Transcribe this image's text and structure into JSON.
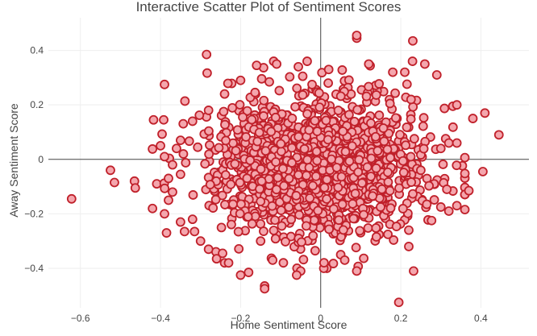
{
  "chart_data": {
    "type": "scatter",
    "title": "Interactive Scatter Plot of Sentiment Scores",
    "xlabel": "Home Sentiment Score",
    "ylabel": "Away Sentiment Score",
    "xlim": [
      -0.68,
      0.52
    ],
    "ylim": [
      -0.545,
      0.52
    ],
    "xticks": [
      -0.6,
      -0.4,
      -0.2,
      0,
      0.2,
      0.4
    ],
    "yticks": [
      -0.4,
      -0.2,
      0,
      0.2,
      0.4
    ],
    "xtick_labels": [
      "−0.6",
      "−0.4",
      "−0.2",
      "0",
      "0.2",
      "0.4"
    ],
    "ytick_labels": [
      "−0.4",
      "−0.2",
      "0",
      "0.2",
      "0.4"
    ],
    "grid": true,
    "zero_lines": true,
    "marker": {
      "fill": "#f4a6ad",
      "stroke": "#c0202a"
    },
    "series": [
      {
        "points": [
          [
            -0.622,
            -0.145
          ],
          [
            -0.525,
            -0.04
          ],
          [
            -0.515,
            -0.085
          ],
          [
            -0.465,
            -0.08
          ],
          [
            -0.463,
            -0.105
          ],
          [
            -0.4,
            0.05
          ],
          [
            -0.39,
            0.01
          ],
          [
            -0.392,
            0.145
          ],
          [
            -0.39,
            0.275
          ],
          [
            -0.385,
            -0.27
          ],
          [
            -0.38,
            -0.07
          ],
          [
            -0.35,
            -0.055
          ],
          [
            -0.34,
            -0.265
          ],
          [
            -0.315,
            -0.265
          ],
          [
            -0.285,
            0.385
          ],
          [
            -0.26,
            -0.365
          ],
          [
            -0.245,
            -0.345
          ],
          [
            -0.24,
            -0.38
          ],
          [
            -0.23,
            -0.38
          ],
          [
            -0.12,
            -0.37
          ],
          [
            -0.18,
            -0.415
          ],
          [
            -0.2,
            -0.425
          ],
          [
            -0.14,
            -0.465
          ],
          [
            -0.14,
            -0.475
          ],
          [
            -0.05,
            -0.41
          ],
          [
            -0.06,
            -0.425
          ],
          [
            0.05,
            -0.35
          ],
          [
            0.06,
            -0.37
          ],
          [
            0.09,
            -0.41
          ],
          [
            0.195,
            -0.525
          ],
          [
            0.232,
            -0.41
          ],
          [
            0.22,
            -0.32
          ],
          [
            0.22,
            -0.26
          ],
          [
            0.265,
            -0.165
          ],
          [
            0.3,
            -0.175
          ],
          [
            0.315,
            -0.11
          ],
          [
            0.32,
            -0.19
          ],
          [
            0.34,
            -0.17
          ],
          [
            0.37,
            -0.115
          ],
          [
            0.405,
            -0.045
          ],
          [
            0.25,
            -0.04
          ],
          [
            0.3,
            0.04
          ],
          [
            0.32,
            0.06
          ],
          [
            0.34,
            0.06
          ],
          [
            0.38,
            0.15
          ],
          [
            0.41,
            0.17
          ],
          [
            0.445,
            0.09
          ],
          [
            0.33,
            0.195
          ],
          [
            0.34,
            0.2
          ],
          [
            0.29,
            0.31
          ],
          [
            0.26,
            0.35
          ],
          [
            0.23,
            0.435
          ],
          [
            0.09,
            0.445
          ],
          [
            0.09,
            0.455
          ],
          [
            -0.16,
            0.345
          ],
          [
            -0.11,
            0.35
          ],
          [
            -0.2,
            0.29
          ],
          [
            -0.24,
            0.24
          ],
          [
            -0.28,
            0.18
          ],
          [
            -0.32,
            0.14
          ],
          [
            -0.35,
            0.07
          ],
          [
            -0.36,
            0.04
          ],
          [
            -0.37,
            -0.02
          ],
          [
            -0.37,
            -0.12
          ],
          [
            -0.38,
            -0.15
          ],
          [
            -0.39,
            -0.2
          ],
          [
            -0.35,
            -0.23
          ],
          [
            -0.32,
            -0.22
          ],
          [
            -0.3,
            -0.3
          ],
          [
            -0.28,
            -0.33
          ],
          [
            -0.15,
            -0.3
          ],
          [
            0.18,
            0.32
          ],
          [
            0.21,
            0.32
          ],
          [
            0.12,
            0.35
          ],
          [
            0.02,
            0.33
          ]
        ],
        "cluster": {
          "count": 1450,
          "center": [
            -0.005,
            -0.015
          ],
          "std_x": 0.13,
          "std_y": 0.125,
          "seed": 7
        }
      }
    ]
  }
}
